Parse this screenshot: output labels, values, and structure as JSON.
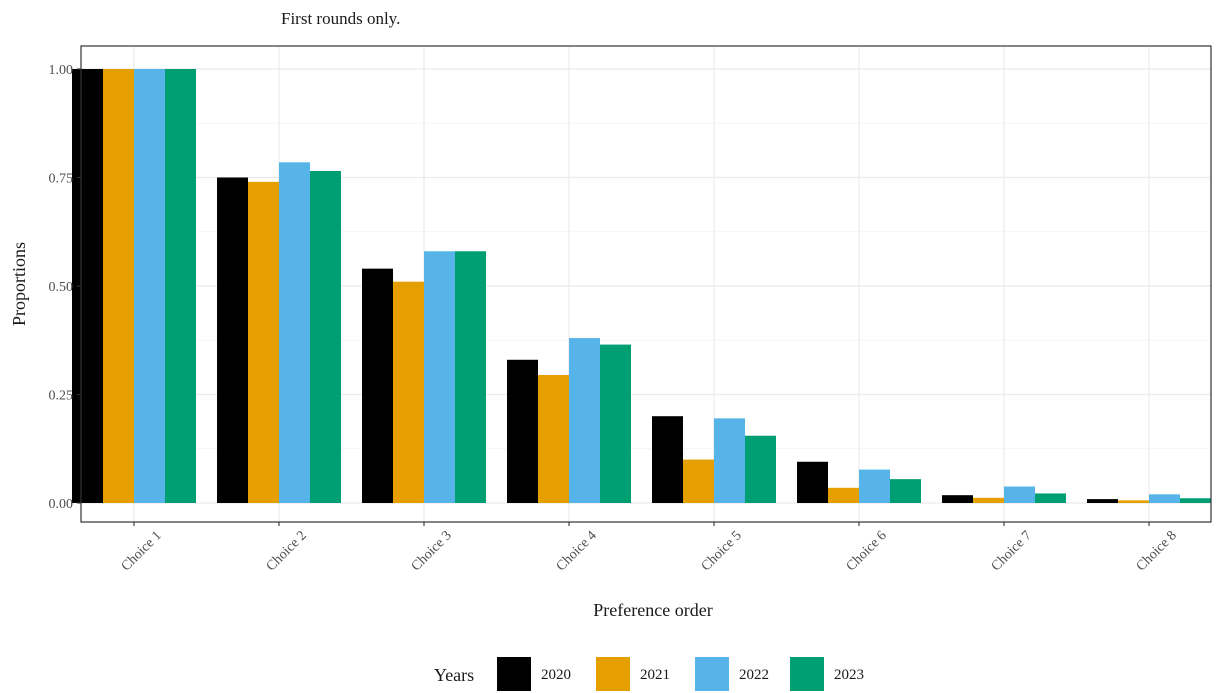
{
  "chart_data": {
    "type": "bar",
    "subtitle": "First rounds only.",
    "xlabel": "Preference order",
    "ylabel": "Proportions",
    "ylim": [
      0,
      1.05
    ],
    "yticks": [
      {
        "value": 0,
        "label": "0.00"
      },
      {
        "value": 0.25,
        "label": "0.25"
      },
      {
        "value": 0.5,
        "label": "0.50"
      },
      {
        "value": 0.75,
        "label": "0.75"
      },
      {
        "value": 1,
        "label": "1.00"
      }
    ],
    "categories": [
      "Choice 1",
      "Choice 2",
      "Choice 3",
      "Choice 4",
      "Choice 5",
      "Choice 6",
      "Choice 7",
      "Choice 8"
    ],
    "series": [
      {
        "name": "2020",
        "color": "#000000",
        "values": [
          1.0,
          0.75,
          0.54,
          0.33,
          0.2,
          0.095,
          0.018,
          0.009
        ]
      },
      {
        "name": "2021",
        "color": "#E69F00",
        "values": [
          1.0,
          0.74,
          0.51,
          0.295,
          0.1,
          0.035,
          0.012,
          0.006
        ]
      },
      {
        "name": "2022",
        "color": "#56B4E9",
        "values": [
          1.0,
          0.785,
          0.58,
          0.38,
          0.195,
          0.077,
          0.038,
          0.02
        ]
      },
      {
        "name": "2023",
        "color": "#009E73",
        "values": [
          1.0,
          0.765,
          0.58,
          0.365,
          0.155,
          0.055,
          0.022,
          0.011
        ]
      }
    ],
    "legend": {
      "title": "Years",
      "position": "bottom"
    },
    "grid": true
  }
}
